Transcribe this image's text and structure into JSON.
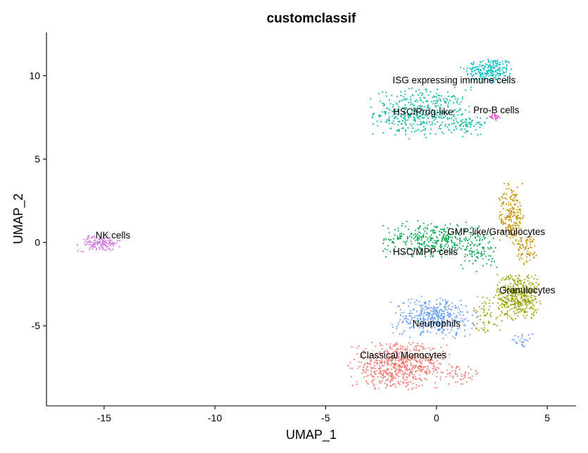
{
  "chart_data": {
    "type": "scatter",
    "title": "customclassif",
    "xlabel": "UMAP_1",
    "ylabel": "UMAP_2",
    "xlim": [
      -17.6,
      6.3
    ],
    "ylim": [
      -9.8,
      12.6
    ],
    "x_ticks": [
      -15,
      -10,
      -5,
      0,
      5
    ],
    "y_ticks": [
      -5,
      0,
      5,
      10
    ],
    "grid": false,
    "legend": "none",
    "clusters": [
      {
        "label": "ISG expressing immune cells",
        "label_x": 0.8,
        "label_y": 9.7,
        "color": "#00BFC4",
        "blobs": [
          {
            "x": 2.4,
            "y": 10.3,
            "sx": 0.75,
            "sy": 0.55,
            "n": 220
          }
        ]
      },
      {
        "label": "HSC/Prog-like",
        "label_x": -0.6,
        "label_y": 7.8,
        "color": "#00B8A0",
        "blobs": [
          {
            "x": -0.7,
            "y": 7.8,
            "sx": 1.45,
            "sy": 0.95,
            "n": 420
          },
          {
            "x": 1.4,
            "y": 7.0,
            "sx": 0.6,
            "sy": 0.4,
            "n": 60
          }
        ]
      },
      {
        "label": "Pro-B cells",
        "label_x": 2.7,
        "label_y": 7.9,
        "color": "#E54BC8",
        "blobs": [
          {
            "x": 2.6,
            "y": 7.5,
            "sx": 0.25,
            "sy": 0.15,
            "n": 22
          }
        ]
      },
      {
        "label": "NK cells",
        "label_x": -14.6,
        "label_y": 0.4,
        "color": "#D070E0",
        "blobs": [
          {
            "x": -15.2,
            "y": -0.05,
            "sx": 0.65,
            "sy": 0.32,
            "n": 130
          }
        ]
      },
      {
        "label": "GMP-like/Granulocytes",
        "label_x": 2.7,
        "label_y": 0.6,
        "color": "#C99000",
        "blobs": [
          {
            "x": 3.4,
            "y": 1.6,
            "sx": 0.4,
            "sy": 1.3,
            "n": 210
          },
          {
            "x": 4.1,
            "y": -0.4,
            "sx": 0.35,
            "sy": 0.6,
            "n": 70
          }
        ]
      },
      {
        "label": "HSC/MPP cells",
        "label_x": -0.5,
        "label_y": -0.6,
        "color": "#00A84A",
        "blobs": [
          {
            "x": -0.2,
            "y": 0.2,
            "sx": 1.5,
            "sy": 0.7,
            "n": 330
          },
          {
            "x": 1.9,
            "y": -0.5,
            "sx": 0.55,
            "sy": 0.8,
            "n": 90
          }
        ]
      },
      {
        "label": "Granulocytes",
        "label_x": 4.1,
        "label_y": -2.9,
        "color": "#9AA300",
        "blobs": [
          {
            "x": 3.7,
            "y": -3.2,
            "sx": 0.65,
            "sy": 0.95,
            "n": 430
          },
          {
            "x": 2.3,
            "y": -4.3,
            "sx": 0.45,
            "sy": 0.8,
            "n": 60
          }
        ]
      },
      {
        "label": "Neutrophils",
        "label_x": 0.0,
        "label_y": -4.9,
        "color": "#619CFF",
        "blobs": [
          {
            "x": -0.1,
            "y": -4.5,
            "sx": 1.25,
            "sy": 0.8,
            "n": 400
          },
          {
            "x": 3.9,
            "y": -5.9,
            "sx": 0.3,
            "sy": 0.3,
            "n": 25
          }
        ]
      },
      {
        "label": "Classical Monocytes",
        "label_x": -1.5,
        "label_y": -6.8,
        "color": "#F8766D",
        "blobs": [
          {
            "x": -1.7,
            "y": -7.4,
            "sx": 1.45,
            "sy": 0.9,
            "n": 620
          },
          {
            "x": 1.0,
            "y": -7.9,
            "sx": 0.7,
            "sy": 0.4,
            "n": 50
          }
        ]
      }
    ]
  }
}
